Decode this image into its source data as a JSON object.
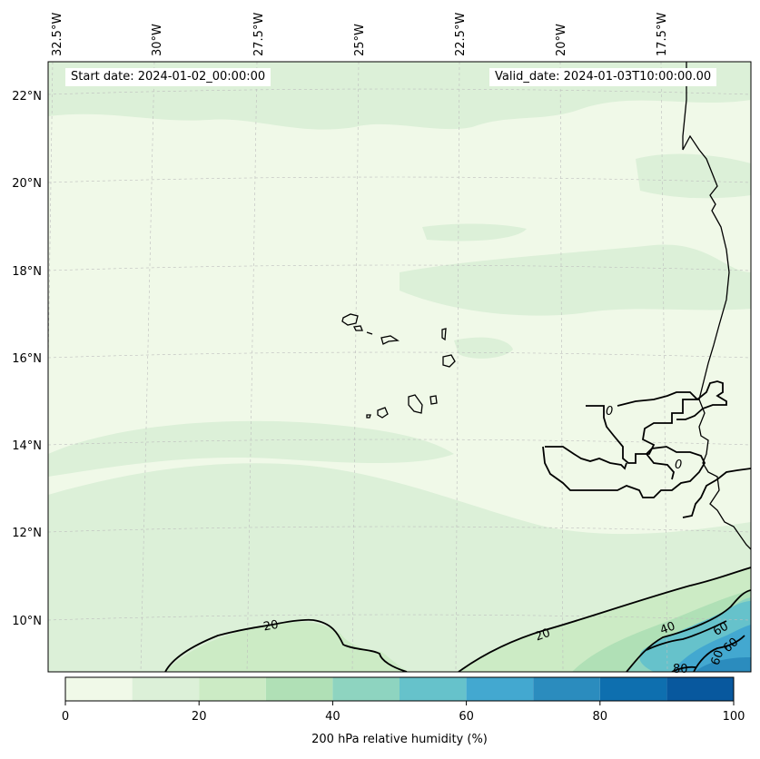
{
  "header": {
    "start_date": "Start date: 2024-01-02_00:00:00",
    "valid_date": "Valid_date: 2024-01-03T10:00:00.00"
  },
  "map": {
    "lon_labels": [
      "32.5°W",
      "30°W",
      "27.5°W",
      "25°W",
      "22.5°W",
      "20°W",
      "17.5°W"
    ],
    "lat_labels": [
      "22°N",
      "20°N",
      "18°N",
      "16°N",
      "14°N",
      "12°N",
      "10°N"
    ],
    "contour_labels": [
      "20",
      "20",
      "0",
      "0",
      "40",
      "60",
      "60",
      "60",
      "80"
    ],
    "fill_colors": {
      "level_0_10": "#f0f9e8",
      "level_10_20": "#dcf0d8",
      "level_20_30": "#ccebc5",
      "level_30_40": "#b0e0b6",
      "level_40_50": "#8ed4c0",
      "level_50_60": "#66c2cb",
      "level_60_70": "#43a8d0",
      "level_70_80": "#2b8cbe",
      "level_80_90": "#0e6faf",
      "level_90_100": "#08589e"
    }
  },
  "colorbar": {
    "title": "200 hPa relative humidity (%)",
    "tick_labels": [
      "0",
      "20",
      "40",
      "60",
      "80",
      "100"
    ],
    "colors": [
      "#f0f9e8",
      "#dcf0d8",
      "#ccebc5",
      "#b0e0b6",
      "#8ed4c0",
      "#66c2cb",
      "#43a8d0",
      "#2b8cbe",
      "#0e6faf",
      "#08589e"
    ]
  }
}
